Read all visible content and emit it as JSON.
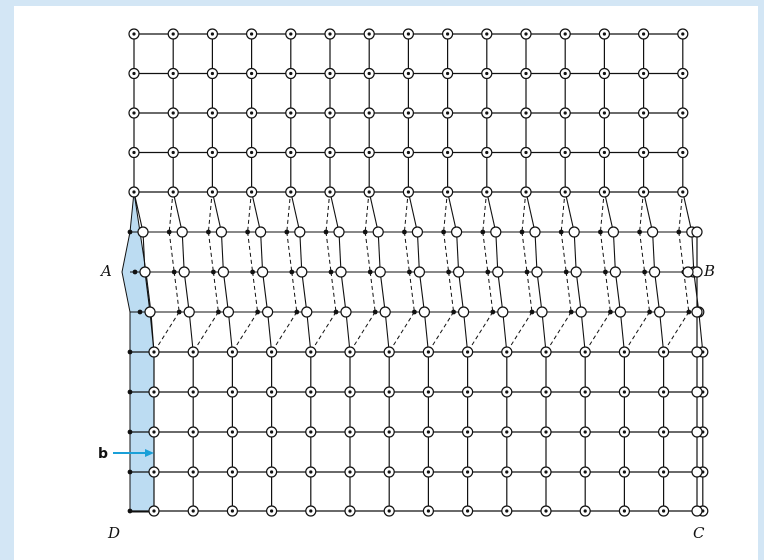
{
  "figure": {
    "labels": {
      "A": "A",
      "B": "B",
      "C": "C",
      "D": "D",
      "burgers": "b"
    },
    "colors": {
      "background": "#d3e6f5",
      "panel": "#ffffff",
      "lines": "#111111",
      "shaded_region": "#bcdcf2",
      "arrow": "#1aa0d8"
    },
    "legend_symbols": [
      "dotted-circle-atom",
      "open-circle-atom",
      "black-dot-atom"
    ]
  }
}
